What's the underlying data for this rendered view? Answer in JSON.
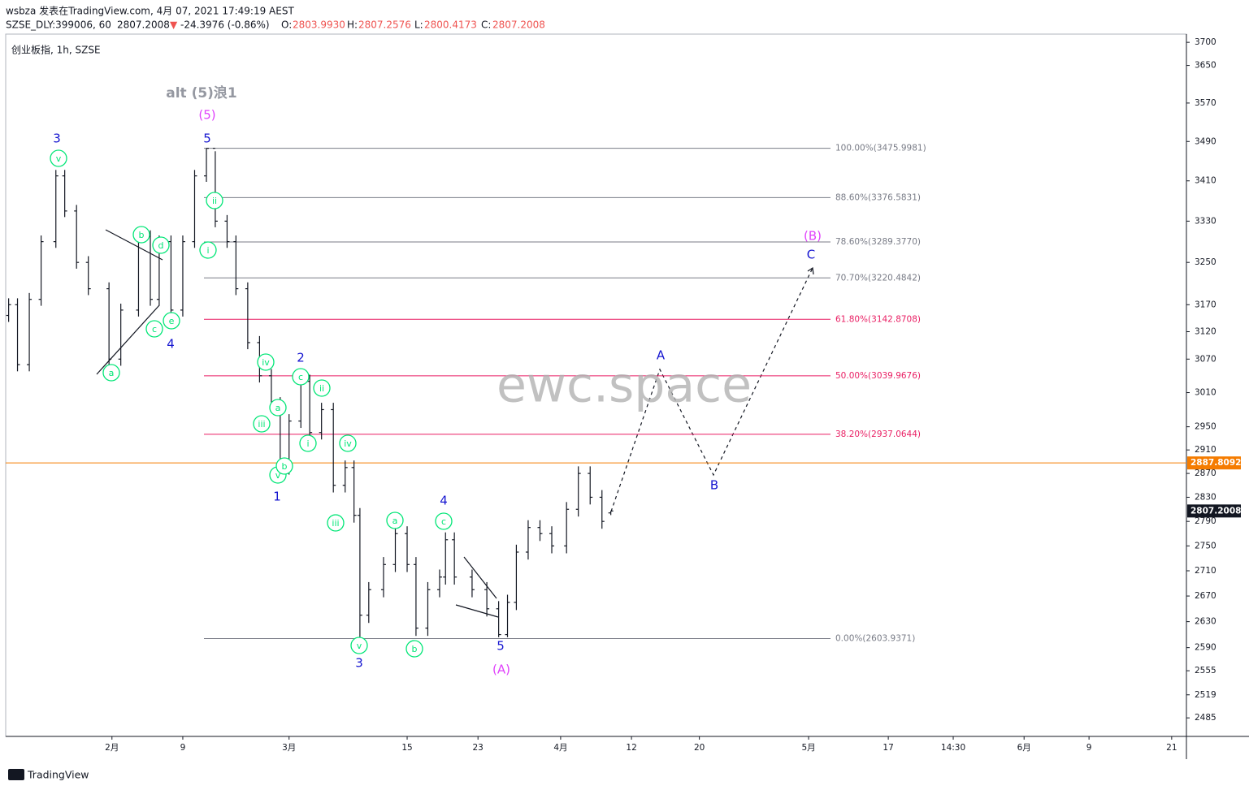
{
  "header": {
    "byline": "wsbza 发表在TradingView.com, 4月 07, 2021 17:49:19 AEST",
    "symbol": "SZSE_DLY:399006, 60",
    "price": "2807.2008",
    "arrow": "▼",
    "change": "-24.3976 (-0.86%)",
    "o_label": "O:",
    "o": "2803.9930",
    "h_label": "H:",
    "h": "2807.2576",
    "l_label": "L:",
    "l": "2800.4173",
    "c_label": "C:",
    "c": "2807.2008",
    "pane_title": "创业板指, 1h, SZSE"
  },
  "footer": {
    "brand": "TradingView"
  },
  "chart_data": {
    "type": "ohlc",
    "log_scale": true,
    "color": "#131722",
    "ylim": [
      2458,
      3718
    ],
    "yticks": [
      2485,
      2519,
      2555,
      2590,
      2630,
      2670,
      2710,
      2750,
      2790,
      2830,
      2870,
      2910,
      2950,
      3010,
      3070,
      3120,
      3170,
      3250,
      3330,
      3410,
      3490,
      3570,
      3650,
      3700
    ],
    "xlim": [
      0,
      400
    ],
    "xticks": [
      {
        "value": 36,
        "label": "2月"
      },
      {
        "value": 60,
        "label": "9"
      },
      {
        "value": 96,
        "label": "3月"
      },
      {
        "value": 136,
        "label": "15"
      },
      {
        "value": 160,
        "label": "23"
      },
      {
        "value": 188,
        "label": "4月"
      },
      {
        "value": 212,
        "label": "12"
      },
      {
        "value": 235,
        "label": "20"
      },
      {
        "value": 272,
        "label": "5月"
      },
      {
        "value": 299,
        "label": "17"
      },
      {
        "value": 321,
        "label": "14:30"
      },
      {
        "value": 345,
        "label": "6月"
      },
      {
        "value": 367,
        "label": "9"
      },
      {
        "value": 395,
        "label": "21"
      }
    ],
    "x": [
      1,
      4,
      8,
      12,
      17,
      20,
      24,
      28,
      35,
      39,
      45,
      49,
      52,
      56,
      60,
      64,
      68,
      71,
      75,
      78,
      82,
      86,
      90,
      93,
      96,
      100,
      103,
      107,
      111,
      115,
      118,
      120,
      123,
      128,
      132,
      136,
      139,
      143,
      147,
      149,
      152,
      158,
      163,
      167,
      170,
      173,
      177,
      181,
      185,
      190,
      194,
      198,
      202,
      205
    ],
    "open": [
      3150,
      3170,
      3060,
      3180,
      3290,
      3420,
      3350,
      3250,
      3200,
      3070,
      3160,
      3300,
      3180,
      3290,
      3160,
      3290,
      3420,
      3476,
      3330,
      3290,
      3200,
      3100,
      3040,
      2990,
      2880,
      2960,
      3030,
      2940,
      2980,
      2850,
      2880,
      2800,
      2640,
      2680,
      2720,
      2770,
      2720,
      2620,
      2680,
      2700,
      2760,
      2700,
      2680,
      2650,
      2610,
      2660,
      2740,
      2780,
      2770,
      2750,
      2810,
      2870,
      2830,
      2803.993
    ],
    "high": [
      3182,
      3182,
      3192,
      3302,
      3432,
      3432,
      3362,
      3262,
      3212,
      3172,
      3312,
      3312,
      3302,
      3302,
      3302,
      3432,
      3476,
      3470,
      3342,
      3302,
      3212,
      3112,
      3052,
      3002,
      2972,
      3042,
      3042,
      2992,
      2992,
      2892,
      2892,
      2812,
      2692,
      2732,
      2782,
      2782,
      2732,
      2692,
      2712,
      2772,
      2772,
      2712,
      2692,
      2662,
      2672,
      2752,
      2792,
      2792,
      2782,
      2822,
      2882,
      2882,
      2842,
      2807.2576
    ],
    "low": [
      3138,
      3048,
      3048,
      3168,
      3278,
      3338,
      3238,
      3188,
      3058,
      3058,
      3148,
      3168,
      3168,
      3148,
      3148,
      3278,
      3408,
      3318,
      3278,
      3188,
      3088,
      3028,
      2978,
      2868,
      2868,
      2948,
      2928,
      2928,
      2838,
      2838,
      2788,
      2604,
      2628,
      2668,
      2708,
      2708,
      2608,
      2608,
      2668,
      2688,
      2688,
      2668,
      2638,
      2606,
      2606,
      2648,
      2728,
      2758,
      2738,
      2738,
      2798,
      2818,
      2778,
      2800.4173
    ],
    "close": [
      3170,
      3060,
      3180,
      3290,
      3420,
      3350,
      3250,
      3200,
      3070,
      3160,
      3300,
      3180,
      3290,
      3160,
      3290,
      3420,
      3476,
      3330,
      3290,
      3200,
      3100,
      3040,
      2990,
      2880,
      2960,
      3030,
      2940,
      2980,
      2850,
      2880,
      2800,
      2640,
      2680,
      2720,
      2770,
      2720,
      2620,
      2680,
      2700,
      2760,
      2700,
      2680,
      2650,
      2610,
      2660,
      2740,
      2780,
      2770,
      2750,
      2810,
      2870,
      2830,
      2790,
      2807.2008
    ],
    "levels": [
      {
        "label": "100.00%(3475.9981)",
        "value": 3475.9981,
        "color": "#787b86"
      },
      {
        "label": "88.60%(3376.5831)",
        "value": 3376.5831,
        "color": "#787b86"
      },
      {
        "label": "78.60%(3289.3770)",
        "value": 3289.377,
        "color": "#787b86"
      },
      {
        "label": "70.70%(3220.4842)",
        "value": 3220.4842,
        "color": "#787b86"
      },
      {
        "label": "61.80%(3142.8708)",
        "value": 3142.8708,
        "color": "#e91e63"
      },
      {
        "label": "50.00%(3039.9676)",
        "value": 3039.9676,
        "color": "#e91e63"
      },
      {
        "label": "38.20%(2937.0644)",
        "value": 2937.0644,
        "color": "#e91e63"
      },
      {
        "label": "0.00%(2603.9371)",
        "value": 2603.9371,
        "color": "#787b86"
      }
    ],
    "price_line": {
      "value": 2887.8092,
      "color": "#f57c00"
    },
    "last_price": {
      "value": 2807.2008,
      "color": "#131722"
    },
    "annotations": [
      "3",
      "v",
      "b",
      "d",
      "c",
      "e",
      "a",
      "4",
      "alt (5)浪1",
      "(5)",
      "5",
      "ii",
      "i",
      "iv",
      "2",
      "c",
      "ii",
      "a",
      "iii",
      "i",
      "iv",
      "v",
      "b",
      "1",
      "iii",
      "v",
      "3",
      "a",
      "b",
      "4",
      "c",
      "5",
      "(A)",
      "A",
      "B",
      "(B)",
      "C",
      "ewc.space"
    ]
  }
}
